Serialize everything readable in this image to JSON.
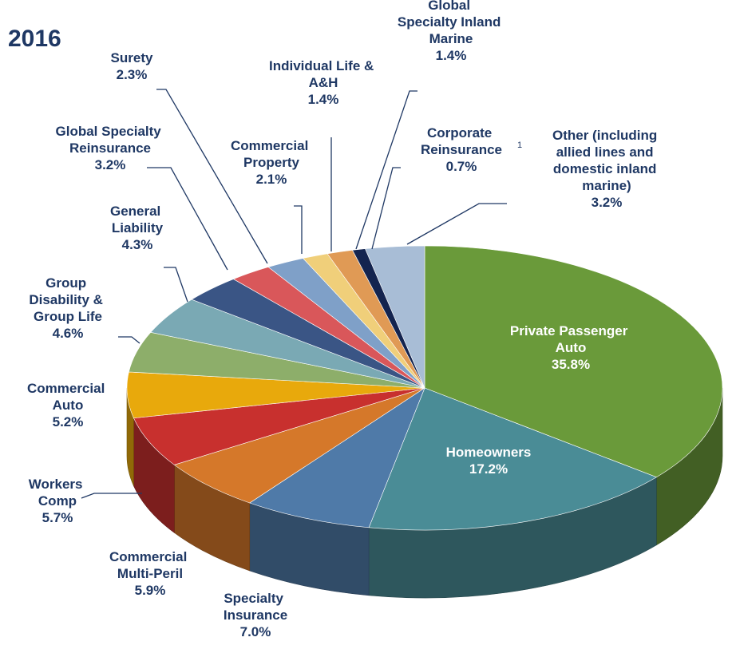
{
  "chart_data": {
    "type": "pie3d",
    "title": "2016",
    "categories": [
      "Private Passenger Auto",
      "Homeowners",
      "Specialty Insurance",
      "Commercial Multi-Peril",
      "Workers Comp",
      "Commercial Auto",
      "Group Disability & Group Life",
      "General Liability",
      "Global Specialty Reinsurance",
      "Surety",
      "Commercial Property",
      "Individual Life & A&H",
      "Global Specialty Inland Marine",
      "Corporate Reinsurance",
      "Other (including allied lines and domestic inland marine)"
    ],
    "values": [
      35.8,
      17.2,
      7.0,
      5.9,
      5.7,
      5.2,
      4.6,
      4.3,
      3.2,
      2.3,
      2.1,
      1.4,
      1.4,
      0.7,
      3.2
    ],
    "value_labels": [
      "35.8%",
      "17.2%",
      "7.0%",
      "5.9%",
      "5.7%",
      "5.2%",
      "4.6%",
      "4.3%",
      "3.2%",
      "2.3%",
      "2.1%",
      "1.4%",
      "1.4%",
      "0.7%",
      "3.2%"
    ],
    "colors": [
      "#6a9a3a",
      "#4a8c96",
      "#4f7aa8",
      "#d5782a",
      "#c8302e",
      "#e8a90c",
      "#8dae6a",
      "#7aa9b4",
      "#3a5585",
      "#d9575a",
      "#7fa0c8",
      "#f0cf7a",
      "#e09a55",
      "#14244f",
      "#a8bdd6"
    ],
    "annotations": [
      "1"
    ]
  }
}
